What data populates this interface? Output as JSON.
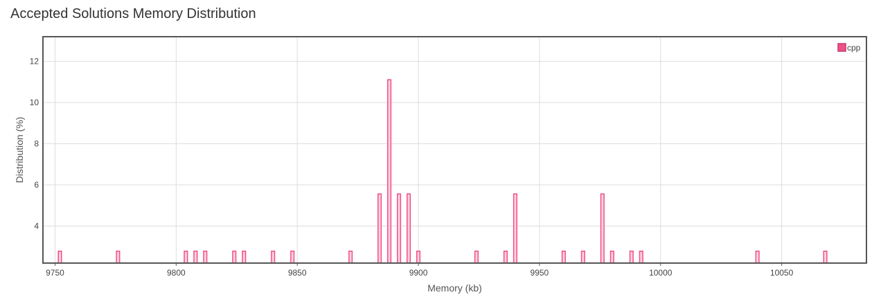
{
  "chart_data": {
    "type": "bar",
    "title": "Accepted Solutions Memory Distribution",
    "xlabel": "Memory (kb)",
    "ylabel": "Distribution (%)",
    "xlim": [
      9745,
      10085
    ],
    "ylim": [
      2.2,
      13.2
    ],
    "xticks": [
      9750,
      9800,
      9850,
      9900,
      9950,
      10000,
      10050
    ],
    "yticks": [
      4,
      6,
      8,
      10,
      12
    ],
    "grid": true,
    "legend_position": "top-right",
    "bar_width_kb": 1.6,
    "series": [
      {
        "name": "cpp",
        "color": "#f0508a",
        "x": [
          9752,
          9776,
          9804,
          9808,
          9812,
          9824,
          9828,
          9840,
          9848,
          9872,
          9884,
          9888,
          9892,
          9896,
          9900,
          9924,
          9936,
          9940,
          9960,
          9968,
          9976,
          9980,
          9988,
          9992,
          10040,
          10068
        ],
        "y": [
          2.78,
          2.78,
          2.78,
          2.78,
          2.78,
          2.78,
          2.78,
          2.78,
          2.78,
          2.78,
          5.56,
          11.11,
          5.56,
          5.56,
          2.78,
          2.78,
          2.78,
          5.56,
          2.78,
          2.78,
          5.56,
          2.78,
          2.78,
          2.78,
          2.78,
          2.78
        ]
      }
    ]
  }
}
